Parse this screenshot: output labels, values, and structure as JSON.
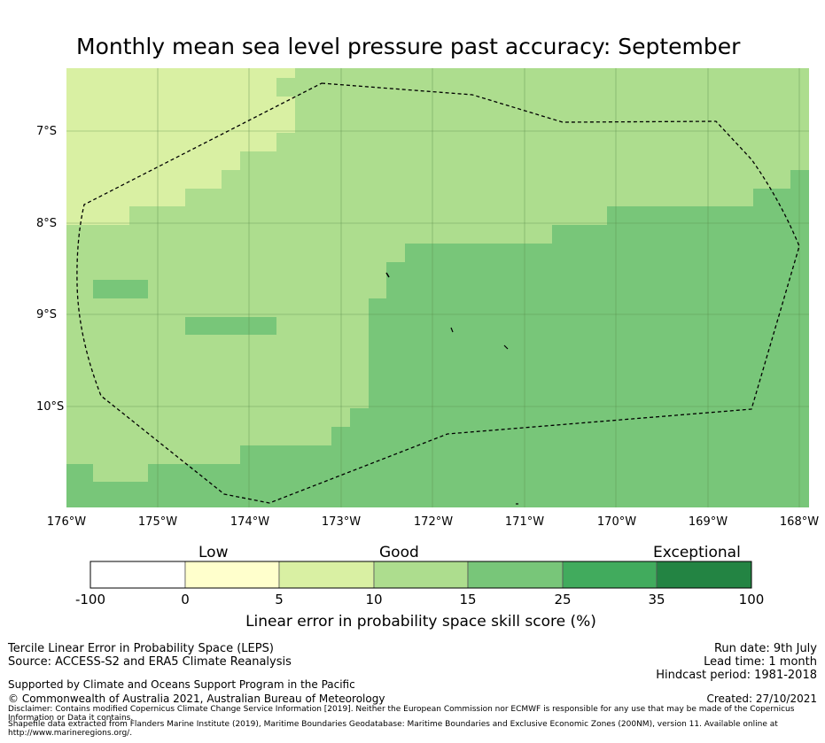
{
  "title": "Monthly mean sea level pressure past accuracy: September",
  "map": {
    "lat_labels": [
      "7°S",
      "8°S",
      "9°S",
      "10°S"
    ],
    "lon_labels": [
      "176°W",
      "175°W",
      "174°W",
      "173°W",
      "172°W",
      "171°W",
      "170°W",
      "169°W",
      "168°W"
    ],
    "extent": {
      "lon_min": -176,
      "lon_max": -167.9,
      "lat_min": -11.1,
      "lat_max": -6.3
    },
    "boundary": "Maritime Boundaries and Exclusive Economic Zones (200NM)",
    "grid": true
  },
  "colorbar": {
    "categories": [
      "Low",
      "Good",
      "Exceptional"
    ],
    "ticks": [
      "-100",
      "0",
      "5",
      "10",
      "15",
      "25",
      "35",
      "100"
    ],
    "colors": [
      "#ffffff",
      "#ffffcc",
      "#d9f0a3",
      "#addd8e",
      "#78c679",
      "#41ab5d",
      "#238443"
    ],
    "label": "Linear error in probability space skill score (%)"
  },
  "info": {
    "method": "Tercile Linear Error in Probability Space (LEPS)",
    "source": "Source: ACCESS-S2 and ERA5 Climate Reanalysis",
    "support": "Supported by Climate and Oceans Support Program in the Pacific",
    "copyright": "© Commonwealth of Australia 2021, Australian Bureau of Meteorology",
    "disclaimer": "Disclaimer: Contains modified Copernicus Climate Change Service Information [2019]. Neither the European Commission nor ECMWF is responsible for any use that may be made of the Copernicus Information or Data it contains.",
    "shapefile": "Shapefile data extracted from Flanders Marine Institute (2019), Maritime Boundaries Geodatabase: Maritime Boundaries and Exclusive Economic Zones (200NM), version 11. Available online at http://www.marineregions.org/.",
    "run_date": "Run date: 9th July",
    "lead_time": "Lead time: 1 month",
    "hindcast": "Hindcast period: 1981-2018",
    "created": "Created: 27/10/2021"
  }
}
